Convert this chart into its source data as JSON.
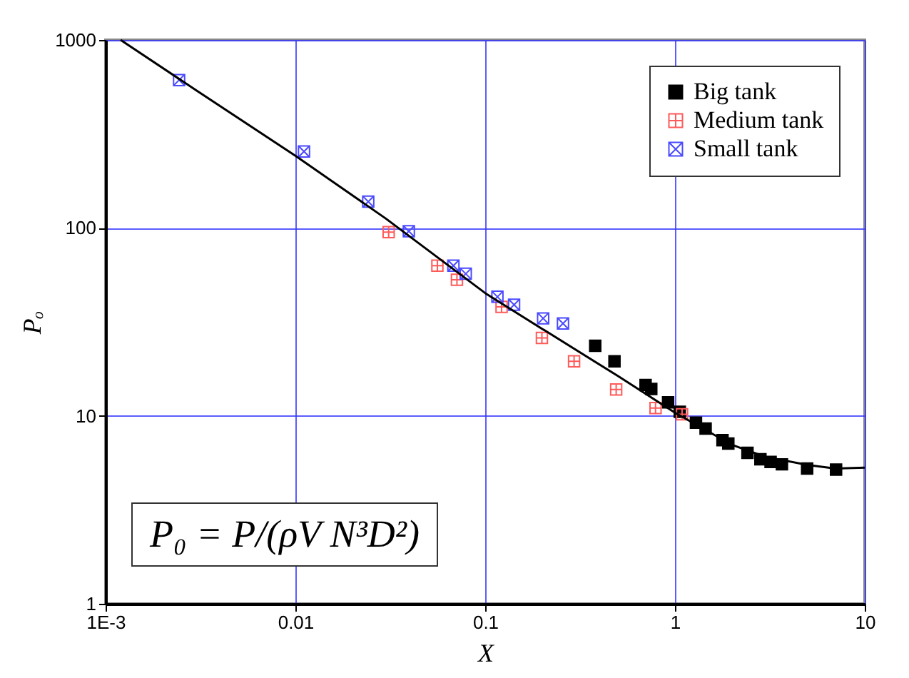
{
  "chart_data": {
    "type": "scatter",
    "xlabel": "X",
    "ylabel": "Pₒ",
    "log": "xy",
    "grid": true,
    "legend": "top right",
    "xlim": [
      0.001,
      10
    ],
    "ylim": [
      1,
      1000
    ],
    "xticks": [
      {
        "value": 0.001,
        "label": "1E-3"
      },
      0.01,
      0.1,
      1,
      10
    ],
    "yticks": [
      1,
      10,
      100,
      1000
    ],
    "annotations": [
      "P₀ = P/(ρV N³D²)"
    ],
    "series": [
      {
        "name": "Big tank",
        "color": "#000000",
        "marker": "square",
        "x": [
          0.38,
          0.48,
          0.7,
          0.75,
          0.92,
          1.06,
          1.29,
          1.45,
          1.78,
          1.91,
          2.41,
          2.82,
          3.19,
          3.66,
          4.97,
          7.06
        ],
        "values": [
          23.6,
          19.5,
          14.6,
          13.9,
          11.8,
          10.5,
          9.2,
          8.55,
          7.43,
          7.12,
          6.35,
          5.88,
          5.68,
          5.52,
          5.24,
          5.17
        ]
      },
      {
        "name": "Medium tank",
        "color": "#ff5a5a",
        "marker": "cross",
        "x": [
          0.031,
          0.056,
          0.071,
          0.122,
          0.199,
          0.294,
          0.49,
          0.79,
          1.09
        ],
        "values": [
          95,
          63,
          53,
          38,
          26,
          19.5,
          13.8,
          11,
          10.2
        ]
      },
      {
        "name": "Small tank",
        "color": "#4a4aff",
        "marker": "cross",
        "x": [
          0.00244,
          0.0111,
          0.0242,
          0.0396,
          0.068,
          0.079,
          0.116,
          0.142,
          0.202,
          0.257
        ],
        "values": [
          612,
          255,
          138,
          96,
          63,
          57,
          43,
          39,
          33,
          31
        ]
      },
      {
        "type": "line",
        "color": "#000000",
        "marker": "none",
        "x": [
          0.0012,
          0.003,
          0.01,
          0.03,
          0.1,
          0.2,
          0.5,
          1,
          2,
          3,
          5,
          7,
          10
        ],
        "values": [
          1000,
          540,
          242,
          112,
          45,
          29,
          16.3,
          10.4,
          7.0,
          6.05,
          5.48,
          5.24,
          5.3
        ]
      }
    ]
  }
}
